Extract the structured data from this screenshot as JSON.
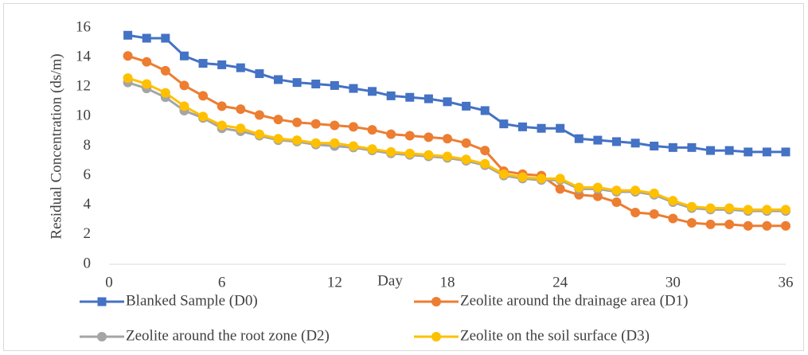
{
  "chart_data": {
    "type": "line",
    "x_label": "Day",
    "y_label": "Residual Concentration (ds/m)",
    "x": [
      1,
      2,
      3,
      4,
      5,
      6,
      7,
      8,
      9,
      10,
      11,
      12,
      13,
      14,
      15,
      16,
      17,
      18,
      19,
      20,
      21,
      22,
      23,
      24,
      25,
      26,
      27,
      28,
      29,
      30,
      31,
      32,
      33,
      34,
      35,
      36
    ],
    "series": [
      {
        "name": "Blanked Sample (D0)",
        "color": "#4472c4",
        "marker": "square",
        "values": [
          15.5,
          15.3,
          15.3,
          14.1,
          13.6,
          13.5,
          13.3,
          12.9,
          12.5,
          12.3,
          12.2,
          12.1,
          11.9,
          11.7,
          11.4,
          11.3,
          11.2,
          11.0,
          10.7,
          10.4,
          9.5,
          9.3,
          9.2,
          9.2,
          8.5,
          8.4,
          8.3,
          8.2,
          8.0,
          7.9,
          7.9,
          7.7,
          7.7,
          7.6,
          7.6,
          7.6
        ]
      },
      {
        "name": "Zeolite around the drainage area (D1)",
        "color": "#ed7d31",
        "marker": "circle",
        "values": [
          14.1,
          13.7,
          13.1,
          12.1,
          11.4,
          10.7,
          10.5,
          10.1,
          9.8,
          9.6,
          9.5,
          9.4,
          9.3,
          9.1,
          8.8,
          8.7,
          8.6,
          8.5,
          8.2,
          7.7,
          6.3,
          6.1,
          6.0,
          5.1,
          4.7,
          4.6,
          4.2,
          3.5,
          3.4,
          3.1,
          2.8,
          2.7,
          2.7,
          2.6,
          2.6,
          2.6
        ]
      },
      {
        "name": "Zeolite around the root zone (D2)",
        "color": "#a5a5a5",
        "marker": "circle",
        "values": [
          12.3,
          11.9,
          11.3,
          10.4,
          9.9,
          9.2,
          9.0,
          8.7,
          8.4,
          8.3,
          8.1,
          8.0,
          7.9,
          7.7,
          7.5,
          7.4,
          7.3,
          7.2,
          7.0,
          6.7,
          6.0,
          5.8,
          5.7,
          5.7,
          5.1,
          5.1,
          4.9,
          4.9,
          4.7,
          4.2,
          3.8,
          3.7,
          3.7,
          3.6,
          3.6,
          3.6
        ]
      },
      {
        "name": "Zeolite on the soil surface (D3)",
        "color": "#ffc000",
        "marker": "circle",
        "values": [
          12.6,
          12.2,
          11.6,
          10.7,
          10.0,
          9.4,
          9.2,
          8.8,
          8.5,
          8.4,
          8.2,
          8.2,
          8.0,
          7.8,
          7.6,
          7.5,
          7.4,
          7.3,
          7.1,
          6.8,
          6.1,
          5.9,
          5.8,
          5.8,
          5.2,
          5.2,
          5.0,
          5.0,
          4.8,
          4.3,
          3.9,
          3.8,
          3.8,
          3.7,
          3.7,
          3.7
        ]
      }
    ],
    "xlim": [
      0,
      36
    ],
    "xticks": [
      0,
      6,
      12,
      18,
      24,
      30,
      36
    ],
    "ylim": [
      0,
      16
    ],
    "yticks": [
      0,
      2,
      4,
      6,
      8,
      10,
      12,
      14,
      16
    ]
  }
}
